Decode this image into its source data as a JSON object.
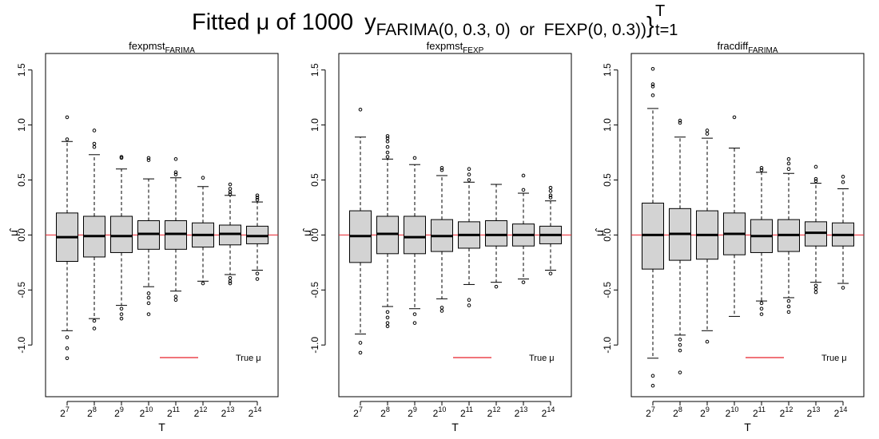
{
  "title_parts": {
    "lead": "Fitted μ of 1000",
    "symbol": "y",
    "subscript": "FARIMA(0, 0.3, 0)  or  FEXP(0, 0.3))",
    "brace": "}",
    "upper": "T",
    "lower": "t=1"
  },
  "chart_data": [
    {
      "type": "boxplot",
      "title": {
        "text": "fexpmst",
        "subscript": "FARIMA"
      },
      "categories": [
        {
          "base": "2",
          "exponent": "7"
        },
        {
          "base": "2",
          "exponent": "8"
        },
        {
          "base": "2",
          "exponent": "9"
        },
        {
          "base": "2",
          "exponent": "10"
        },
        {
          "base": "2",
          "exponent": "11"
        },
        {
          "base": "2",
          "exponent": "12"
        },
        {
          "base": "2",
          "exponent": "13"
        },
        {
          "base": "2",
          "exponent": "14"
        }
      ],
      "x_label": "T",
      "y_label": "μ̂",
      "ylim": [
        -1.47,
        1.65
      ],
      "yticks": [
        {
          "value": -1.0,
          "label": "-1.0"
        },
        -0.5,
        {
          "value": 0.0,
          "label": "0.0"
        },
        0.5,
        {
          "value": 1.0,
          "label": "1.0"
        },
        1.5
      ],
      "box_color": "#d3d3d3",
      "reference": {
        "name": "True μ",
        "value": 0,
        "color": "#e8202a"
      },
      "whisker_low": [
        -0.87,
        -0.76,
        -0.64,
        -0.47,
        -0.51,
        -0.42,
        -0.36,
        -0.32
      ],
      "q1": [
        -0.24,
        -0.2,
        -0.16,
        -0.13,
        -0.13,
        -0.11,
        -0.09,
        -0.08
      ],
      "median": [
        -0.02,
        -0.01,
        -0.01,
        0.01,
        0.01,
        0.0,
        0.01,
        -0.01
      ],
      "q3": [
        0.2,
        0.17,
        0.17,
        0.13,
        0.13,
        0.11,
        0.09,
        0.08
      ],
      "whisker_high": [
        0.85,
        0.73,
        0.6,
        0.51,
        0.52,
        0.44,
        0.36,
        0.3
      ],
      "outliers": [
        [
          1.07,
          0.87,
          -0.93,
          -1.03,
          -1.12
        ],
        [
          0.95,
          0.83,
          0.8,
          -0.78,
          -0.85
        ],
        [
          0.71,
          0.7,
          -0.67,
          -0.72,
          -0.76
        ],
        [
          0.7,
          0.68,
          -0.53,
          -0.57,
          -0.62,
          -0.72
        ],
        [
          0.69,
          0.57,
          0.55,
          -0.56,
          -0.59
        ],
        [
          0.52,
          -0.44
        ],
        [
          0.46,
          0.42,
          0.39,
          0.37,
          -0.39,
          -0.42,
          -0.44
        ],
        [
          0.36,
          0.34,
          0.32,
          -0.35,
          -0.4
        ]
      ]
    },
    {
      "type": "boxplot",
      "title": {
        "text": "fexpmst",
        "subscript": "FEXP"
      },
      "categories": [
        {
          "base": "2",
          "exponent": "7"
        },
        {
          "base": "2",
          "exponent": "8"
        },
        {
          "base": "2",
          "exponent": "9"
        },
        {
          "base": "2",
          "exponent": "10"
        },
        {
          "base": "2",
          "exponent": "11"
        },
        {
          "base": "2",
          "exponent": "12"
        },
        {
          "base": "2",
          "exponent": "13"
        },
        {
          "base": "2",
          "exponent": "14"
        }
      ],
      "x_label": "T",
      "y_label": "μ̂",
      "ylim": [
        -1.47,
        1.65
      ],
      "yticks": [
        {
          "value": -1.0,
          "label": "-1.0"
        },
        -0.5,
        {
          "value": 0.0,
          "label": "0.0"
        },
        0.5,
        {
          "value": 1.0,
          "label": "1.0"
        },
        1.5
      ],
      "box_color": "#d3d3d3",
      "reference": {
        "name": "True μ",
        "value": 0,
        "color": "#e8202a"
      },
      "whisker_low": [
        -0.9,
        -0.65,
        -0.67,
        -0.58,
        -0.45,
        -0.43,
        -0.4,
        -0.32
      ],
      "q1": [
        -0.25,
        -0.17,
        -0.17,
        -0.15,
        -0.12,
        -0.1,
        -0.1,
        -0.08
      ],
      "median": [
        -0.01,
        0.01,
        -0.02,
        -0.01,
        0.0,
        0.0,
        0.0,
        0.0
      ],
      "q3": [
        0.22,
        0.17,
        0.17,
        0.14,
        0.12,
        0.13,
        0.1,
        0.08
      ],
      "whisker_high": [
        0.89,
        0.69,
        0.64,
        0.54,
        0.48,
        0.46,
        0.38,
        0.31
      ],
      "outliers": [
        [
          1.14,
          -0.98,
          -1.07
        ],
        [
          0.9,
          0.88,
          0.85,
          0.8,
          0.75,
          0.71,
          -0.7,
          -0.75,
          -0.8,
          -0.83
        ],
        [
          0.7,
          -0.72,
          -0.8
        ],
        [
          0.61,
          0.59,
          -0.66,
          -0.69
        ],
        [
          0.6,
          0.55,
          0.5,
          -0.59,
          -0.64
        ],
        [
          -0.47
        ],
        [
          0.54,
          0.41,
          -0.43
        ],
        [
          0.43,
          0.4,
          0.36,
          0.34,
          -0.35
        ]
      ]
    },
    {
      "type": "boxplot",
      "title": {
        "text": "fracdiff",
        "subscript": "FARIMA"
      },
      "categories": [
        {
          "base": "2",
          "exponent": "7"
        },
        {
          "base": "2",
          "exponent": "8"
        },
        {
          "base": "2",
          "exponent": "9"
        },
        {
          "base": "2",
          "exponent": "10"
        },
        {
          "base": "2",
          "exponent": "11"
        },
        {
          "base": "2",
          "exponent": "12"
        },
        {
          "base": "2",
          "exponent": "13"
        },
        {
          "base": "2",
          "exponent": "14"
        }
      ],
      "x_label": "T",
      "y_label": "μ̂",
      "ylim": [
        -1.47,
        1.65
      ],
      "yticks": [
        {
          "value": -1.0,
          "label": "-1.0"
        },
        -0.5,
        {
          "value": 0.0,
          "label": "0.0"
        },
        0.5,
        {
          "value": 1.0,
          "label": "1.0"
        },
        1.5
      ],
      "box_color": "#d3d3d3",
      "reference": {
        "name": "True μ",
        "value": 0,
        "color": "#e8202a"
      },
      "whisker_low": [
        -1.12,
        -0.91,
        -0.87,
        -0.74,
        -0.6,
        -0.57,
        -0.43,
        -0.44
      ],
      "q1": [
        -0.31,
        -0.23,
        -0.22,
        -0.18,
        -0.16,
        -0.15,
        -0.1,
        -0.1
      ],
      "median": [
        0.0,
        0.01,
        0.0,
        0.01,
        -0.01,
        0.0,
        0.02,
        0.0
      ],
      "q3": [
        0.29,
        0.24,
        0.22,
        0.2,
        0.14,
        0.14,
        0.12,
        0.11
      ],
      "whisker_high": [
        1.15,
        0.89,
        0.88,
        0.79,
        0.57,
        0.56,
        0.47,
        0.42
      ],
      "outliers": [
        [
          1.51,
          1.37,
          1.35,
          1.27,
          -1.28,
          -1.37
        ],
        [
          1.04,
          1.02,
          -0.95,
          -1.0,
          -1.05,
          -1.25
        ],
        [
          0.95,
          0.92,
          -0.97
        ],
        [
          1.07
        ],
        [
          0.61,
          0.59,
          -0.62,
          -0.67,
          -0.72
        ],
        [
          0.69,
          0.65,
          0.6,
          -0.6,
          -0.65,
          -0.7
        ],
        [
          0.62,
          0.51,
          0.49,
          -0.46,
          -0.49,
          -0.52
        ],
        [
          0.53,
          0.48,
          -0.48
        ]
      ]
    }
  ]
}
